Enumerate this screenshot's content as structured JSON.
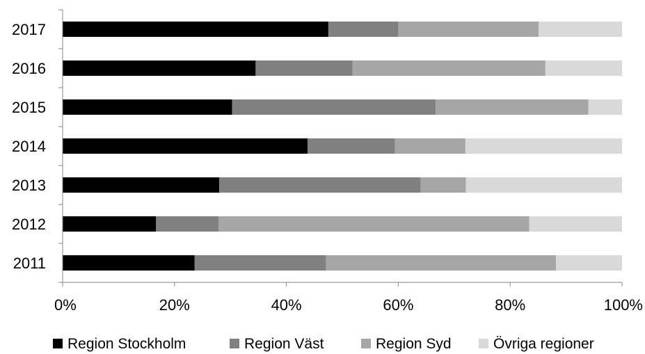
{
  "chart_data": {
    "type": "bar",
    "orientation": "horizontal",
    "stacked": "percent",
    "title": "",
    "xlabel": "",
    "ylabel": "",
    "xlim": [
      0,
      100
    ],
    "x_ticks": [
      "0%",
      "20%",
      "40%",
      "60%",
      "80%",
      "100%"
    ],
    "categories": [
      "2017",
      "2016",
      "2015",
      "2014",
      "2013",
      "2012",
      "2011"
    ],
    "series": [
      {
        "name": "Region Stockholm",
        "color": "#000000",
        "values": [
          47.5,
          34.5,
          30.3,
          43.8,
          28.0,
          16.7,
          23.6
        ]
      },
      {
        "name": "Region Väst",
        "color": "#808080",
        "values": [
          12.5,
          17.3,
          36.4,
          15.6,
          36.0,
          11.2,
          23.5
        ]
      },
      {
        "name": "Region Syd",
        "color": "#a6a6a6",
        "values": [
          25.1,
          34.5,
          27.3,
          12.6,
          8.1,
          55.5,
          41.1
        ]
      },
      {
        "name": "Övriga regioner",
        "color": "#d9d9d9",
        "values": [
          14.9,
          13.7,
          6.0,
          28.0,
          27.9,
          16.6,
          11.8
        ]
      }
    ],
    "grid": false,
    "legend_position": "bottom"
  }
}
